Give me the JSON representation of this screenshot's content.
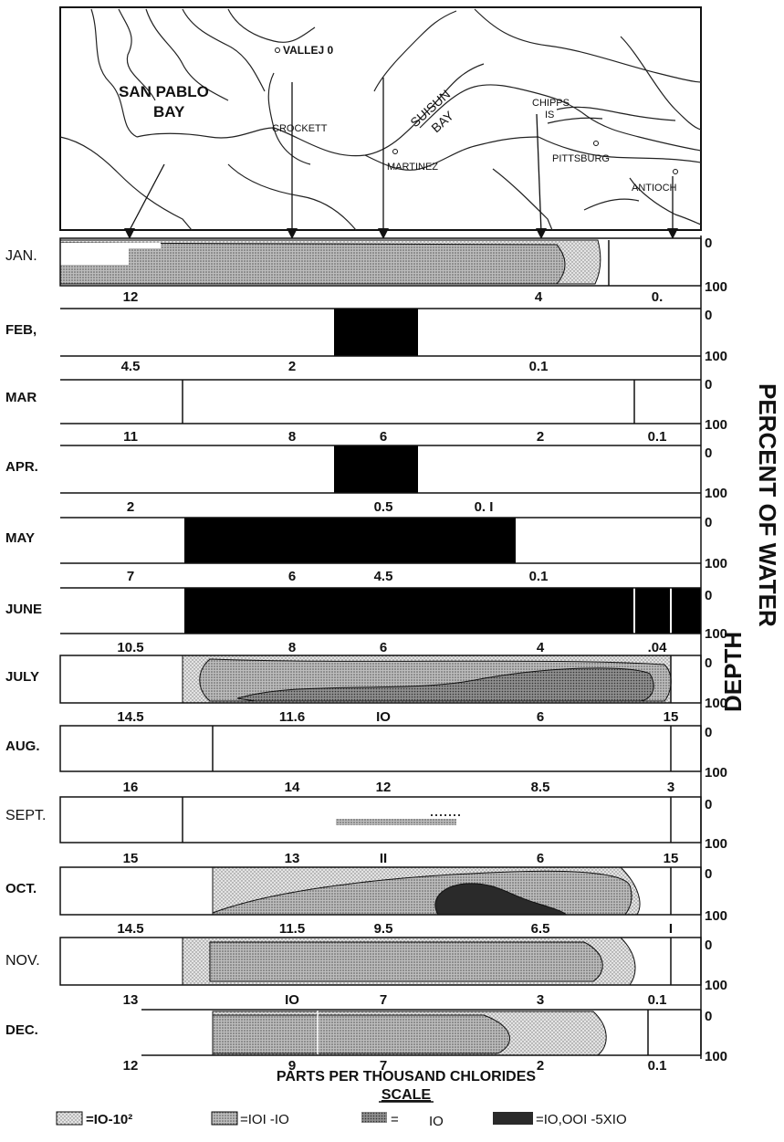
{
  "map": {
    "places": {
      "san_pablo_1": "SAN PABLO",
      "san_pablo_2": "BAY",
      "vallejo": "VALLEJ 0",
      "crockett": "CROCKETT",
      "suisun_1": "SUISUN",
      "suisun_2": "BAY",
      "chipps_1": "CHIPPS",
      "chipps_2": "IS",
      "martinez": "MARTINEZ",
      "pittsburg": "PITTSBURG",
      "antioch": "ANTIOCH"
    }
  },
  "months": [
    {
      "label": "JAN.",
      "values": [
        "12",
        "4",
        "0."
      ],
      "depth_top": "0",
      "depth_bottom": "100"
    },
    {
      "label": "FEB,",
      "values": [
        "4.5",
        "2",
        "0.1"
      ],
      "depth_top": "0",
      "depth_bottom": "100"
    },
    {
      "label": "MAR",
      "values": [
        "11",
        "8",
        "6",
        "2",
        "0.1"
      ],
      "depth_top": "0",
      "depth_bottom": "100"
    },
    {
      "label": "APR.",
      "values": [
        "2",
        "0.5",
        "0. I"
      ],
      "depth_top": "0",
      "depth_bottom": "100"
    },
    {
      "label": "MAY",
      "values": [
        "7",
        "6",
        "4.5",
        "0.1"
      ],
      "depth_top": "0",
      "depth_bottom": "100"
    },
    {
      "label": "JUNE",
      "values": [
        "10.5",
        "8",
        "6",
        "4",
        ".04"
      ],
      "depth_top": "0",
      "depth_bottom": "100"
    },
    {
      "label": "JULY",
      "values": [
        "14.5",
        "11.6",
        "IO",
        "6",
        "15"
      ],
      "depth_top": "0",
      "depth_bottom": "100"
    },
    {
      "label": "AUG.",
      "values": [
        "16",
        "14",
        "12",
        "8.5",
        "3"
      ],
      "depth_top": "0",
      "depth_bottom": "100"
    },
    {
      "label": "SEPT.",
      "values": [
        "15",
        "13",
        "II",
        "6",
        "15"
      ],
      "depth_top": "0",
      "depth_bottom": "100"
    },
    {
      "label": "OCT.",
      "values": [
        "14.5",
        "11.5",
        "9.5",
        "6.5",
        "I"
      ],
      "depth_top": "0",
      "depth_bottom": "100"
    },
    {
      "label": "NOV.",
      "values": [
        "13",
        "IO",
        "7",
        "3",
        "0.1"
      ],
      "depth_top": "0",
      "depth_bottom": "100"
    },
    {
      "label": "DEC.",
      "values": [
        "12",
        "9",
        "7",
        "2",
        "0.1"
      ],
      "depth_top": "0",
      "depth_bottom": "100"
    }
  ],
  "side_label": "PERCENT OF WATER",
  "side_label_2": "DEPTH",
  "xaxis_title": "PARTS PER THOUSAND CHLORIDES",
  "scale": {
    "title": "SCALE",
    "items": [
      "=IO-10²",
      "=IOI -IO",
      "=",
      "IO",
      "=IO,OOI -5XIO"
    ]
  },
  "colors": {
    "light_stipple": "#d8d8d8",
    "medium_stipple": "#b4b4b4",
    "heavy_stipple": "#8a8a8a",
    "dark": "#2a2a2a",
    "black": "#000000",
    "outline": "#111111"
  }
}
